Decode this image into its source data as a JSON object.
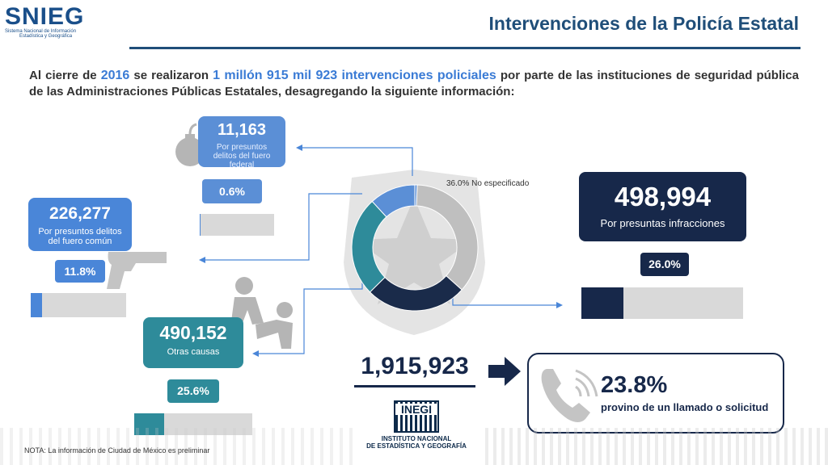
{
  "header": {
    "logo_text": "SNIEG",
    "logo_subtitle_1": "Sistema Nacional de Información",
    "logo_subtitle_2": "Estadística y Geográfica",
    "title": "Intervenciones de la Policía Estatal"
  },
  "intro": {
    "part1": "Al cierre de ",
    "year": "2016",
    "part2": " se realizaron ",
    "amount": "1 millón 915 mil 923 intervenciones policiales",
    "part3": " por parte de las instituciones de seguridad pública de las Administraciones Públicas Estatales, desagregando la siguiente información:"
  },
  "cards": {
    "federal": {
      "value": "11,163",
      "label": "Por presuntos delitos del fuero federal",
      "pct": "0.6%"
    },
    "comun": {
      "value": "226,277",
      "label": "Por presuntos delitos del fuero común",
      "pct": "11.8%"
    },
    "otras": {
      "value": "490,152",
      "label": "Otras causas",
      "pct": "25.6%"
    },
    "infracciones": {
      "value": "498,994",
      "label": "Por presuntas infracciones",
      "pct": "26.0%"
    },
    "no_especificado": {
      "label": "36.0% No especificado"
    }
  },
  "total": "1,915,923",
  "llamado": {
    "pct": "23.8%",
    "label": "provino de un llamado o solicitud"
  },
  "inegi": {
    "logo": "INEGI",
    "line1": "INSTITUTO NACIONAL",
    "line2": "DE ESTADÍSTICA Y GEOGRAFÍA"
  },
  "note": "NOTA: La información de Ciudad de México es preliminar",
  "chart_data": {
    "type": "pie",
    "categories": [
      "Por presuntos delitos del fuero federal",
      "Por presuntos delitos del fuero común",
      "Otras causas",
      "Por presuntas infracciones",
      "No especificado"
    ],
    "values": [
      0.6,
      11.8,
      25.6,
      26.0,
      36.0
    ],
    "colors": [
      "#5b8fd6",
      "#5b8fd6",
      "#2e8b9a",
      "#1a2b4a",
      "#bfbfbf"
    ]
  },
  "colors": {
    "blue": "#4a86d8",
    "teal": "#2e8b9a",
    "navy": "#17284a",
    "gray": "#bfbfbf",
    "title": "#1f4e79"
  }
}
